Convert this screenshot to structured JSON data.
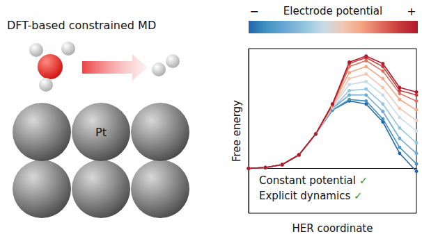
{
  "chart_data": {
    "type": "line",
    "colorbar": {
      "label": "Electrode potential",
      "min_label": "−",
      "max_label": "+"
    },
    "xlabel": "HER coordinate",
    "ylabel": "Free energy",
    "x": [
      0,
      1,
      2,
      3,
      4,
      5,
      6,
      7,
      8,
      9,
      10
    ],
    "xlim": [
      0,
      10
    ],
    "ylim": [
      -3,
      8
    ],
    "tick_labels": false,
    "grid": false,
    "marker": "circle",
    "annotations": [
      "Constant potential ✓",
      "Explicit dynamics ✓"
    ],
    "series": [
      {
        "color": "#2166ac",
        "values": [
          0,
          0.05,
          0.25,
          0.9,
          2.3,
          3.9,
          4.5,
          4.3,
          3.1,
          1.0,
          -0.2
        ]
      },
      {
        "color": "#4393c3",
        "values": [
          0,
          0.05,
          0.25,
          0.9,
          2.3,
          3.9,
          4.6,
          4.5,
          3.3,
          1.4,
          0.3
        ]
      },
      {
        "color": "#6fa8d6",
        "values": [
          0,
          0.05,
          0.25,
          0.9,
          2.3,
          4.0,
          4.9,
          4.9,
          3.8,
          2.0,
          1.0
        ]
      },
      {
        "color": "#92c5de",
        "values": [
          0,
          0.05,
          0.25,
          0.9,
          2.3,
          4.0,
          5.2,
          5.3,
          4.3,
          2.7,
          1.7
        ]
      },
      {
        "color": "#c9dbe6",
        "values": [
          0,
          0.05,
          0.25,
          0.9,
          2.3,
          4.1,
          5.6,
          5.8,
          4.9,
          3.4,
          2.5
        ]
      },
      {
        "color": "#f0c8b4",
        "values": [
          0,
          0.05,
          0.25,
          0.9,
          2.3,
          4.1,
          6.0,
          6.3,
          5.4,
          4.0,
          3.2
        ]
      },
      {
        "color": "#f4a582",
        "values": [
          0,
          0.05,
          0.25,
          0.9,
          2.3,
          4.2,
          6.4,
          6.8,
          6.0,
          4.6,
          3.9
        ]
      },
      {
        "color": "#e07060",
        "values": [
          0,
          0.05,
          0.25,
          0.9,
          2.3,
          4.2,
          6.8,
          7.2,
          6.5,
          5.0,
          4.5
        ]
      },
      {
        "color": "#c93a3a",
        "values": [
          0,
          0.05,
          0.25,
          0.9,
          2.3,
          4.3,
          7.0,
          7.4,
          6.8,
          5.2,
          4.9
        ]
      },
      {
        "color": "#b2182b",
        "values": [
          0,
          0.05,
          0.25,
          0.9,
          2.3,
          4.3,
          7.1,
          7.5,
          7.0,
          5.4,
          5.1
        ]
      }
    ]
  },
  "diagram": {
    "title": "DFT-based constrained MD",
    "atom_label": "Pt"
  }
}
